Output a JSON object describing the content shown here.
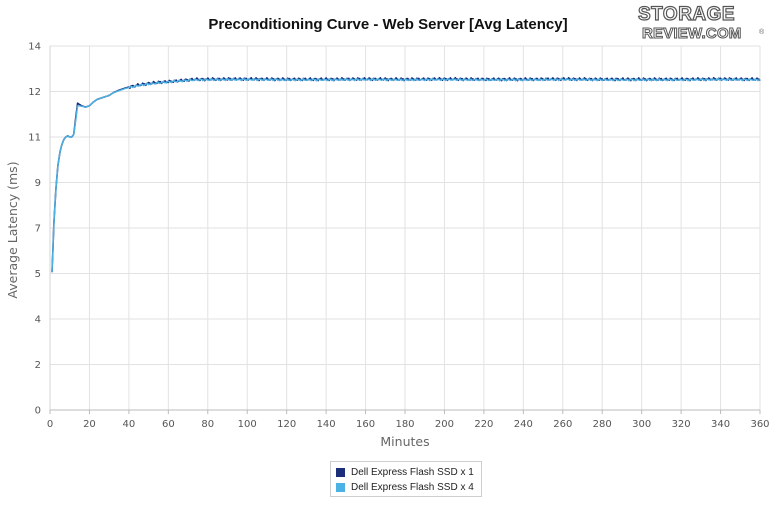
{
  "logo": {
    "line1": "STORAGE",
    "line2": "REVIEW.COM",
    "mark": "®"
  },
  "chart_data": {
    "type": "line",
    "title": "Preconditioning Curve - Web Server [Avg Latency]",
    "xlabel": "Minutes",
    "ylabel": "Average Latency (ms)",
    "xlim": [
      0,
      360
    ],
    "ylim": [
      0,
      14
    ],
    "xticks": [
      "0",
      "20",
      "40",
      "60",
      "80",
      "100",
      "120",
      "140",
      "160",
      "180",
      "200",
      "220",
      "240",
      "260",
      "280",
      "300",
      "320",
      "340",
      "360"
    ],
    "yticks": [
      "0",
      "2",
      "4",
      "5",
      "7",
      "9",
      "11",
      "12",
      "14"
    ],
    "ytick_values": [
      0,
      1.75,
      3.5,
      5.25,
      7,
      8.75,
      10.5,
      12.25,
      14
    ],
    "grid": true,
    "legend_position": "bottom-center",
    "series": [
      {
        "name": "Dell Express Flash SSD x 1",
        "color": "#1a2e7a",
        "x": [
          1,
          2,
          3,
          4,
          5,
          6,
          7,
          8,
          9,
          10,
          11,
          12,
          13,
          14,
          15,
          16,
          18,
          20,
          22,
          24,
          26,
          28,
          30,
          32,
          35,
          38,
          40,
          45,
          50,
          55,
          60,
          65,
          70,
          75,
          80,
          90,
          100,
          120,
          140,
          160,
          180,
          200,
          220,
          240,
          260,
          280,
          300,
          320,
          340,
          360
        ],
        "y": [
          5.3,
          7.2,
          8.5,
          9.4,
          9.9,
          10.2,
          10.4,
          10.5,
          10.55,
          10.5,
          10.5,
          10.6,
          11.2,
          11.8,
          11.75,
          11.7,
          11.65,
          11.7,
          11.85,
          11.95,
          12.0,
          12.05,
          12.1,
          12.2,
          12.3,
          12.38,
          12.42,
          12.5,
          12.56,
          12.6,
          12.63,
          12.66,
          12.7,
          12.72,
          12.72,
          12.73,
          12.73,
          12.72,
          12.72,
          12.73,
          12.72,
          12.73,
          12.72,
          12.72,
          12.73,
          12.72,
          12.72,
          12.72,
          12.73,
          12.72
        ]
      },
      {
        "name": "Dell Express Flash SSD x 4",
        "color": "#4cb2e4",
        "x": [
          1,
          2,
          3,
          4,
          5,
          6,
          7,
          8,
          9,
          10,
          11,
          12,
          13,
          14,
          15,
          16,
          18,
          20,
          22,
          24,
          26,
          28,
          30,
          32,
          35,
          38,
          40,
          45,
          50,
          55,
          60,
          65,
          70,
          75,
          80,
          90,
          100,
          120,
          140,
          160,
          180,
          200,
          220,
          240,
          260,
          280,
          300,
          320,
          340,
          360
        ],
        "y": [
          5.3,
          7.2,
          8.5,
          9.4,
          9.9,
          10.2,
          10.4,
          10.5,
          10.55,
          10.5,
          10.5,
          10.6,
          11.1,
          11.7,
          11.7,
          11.68,
          11.65,
          11.7,
          11.85,
          11.95,
          12.0,
          12.05,
          12.1,
          12.2,
          12.28,
          12.36,
          12.4,
          12.48,
          12.54,
          12.58,
          12.62,
          12.65,
          12.68,
          12.7,
          12.7,
          12.71,
          12.71,
          12.7,
          12.7,
          12.71,
          12.7,
          12.71,
          12.7,
          12.7,
          12.71,
          12.7,
          12.7,
          12.7,
          12.71,
          12.7
        ]
      }
    ]
  }
}
